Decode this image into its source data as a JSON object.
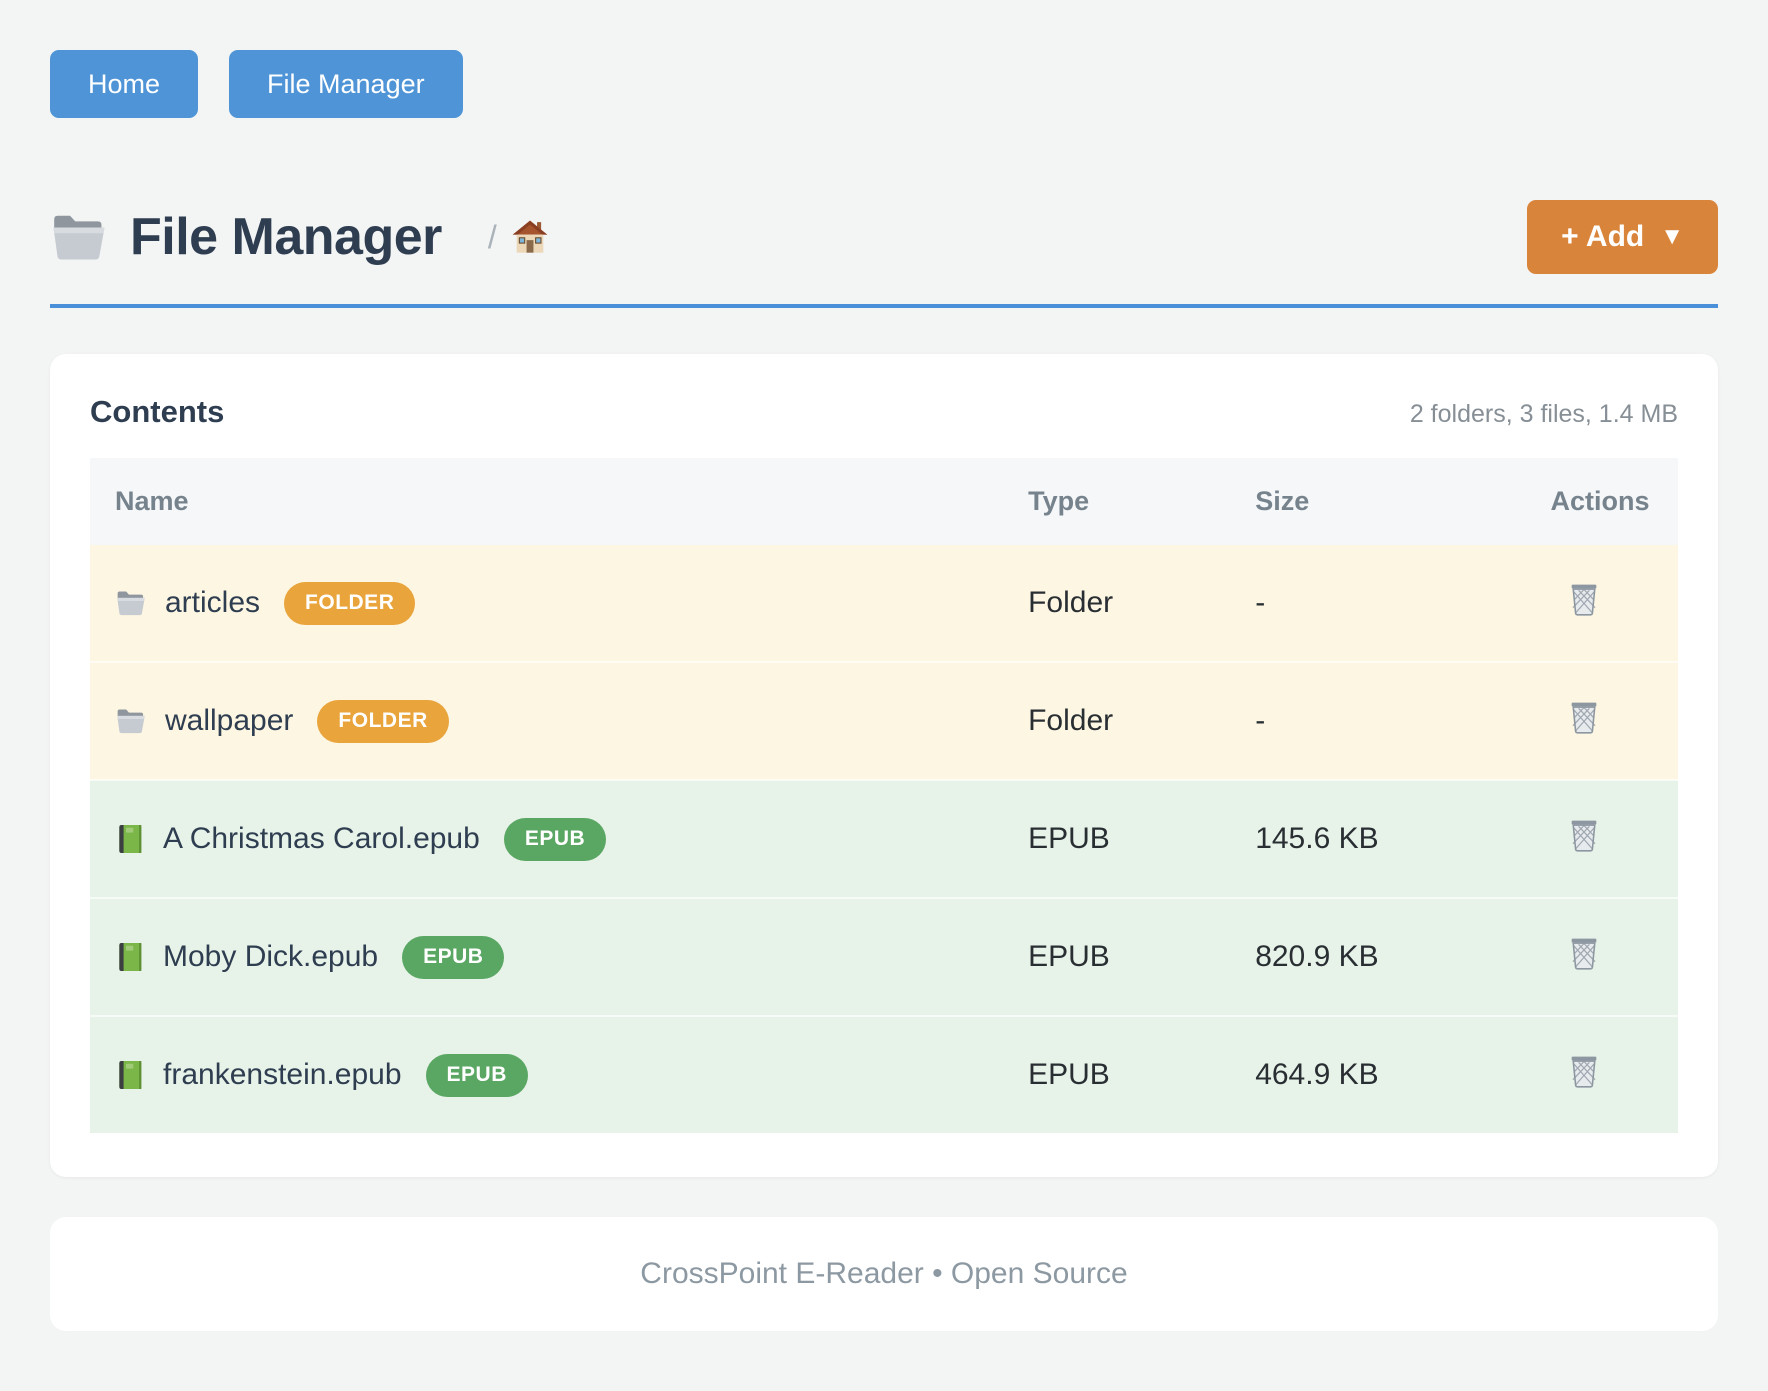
{
  "nav": {
    "buttons": [
      {
        "label": "Home"
      },
      {
        "label": "File Manager"
      }
    ],
    "button_color": "#4e94d6"
  },
  "header": {
    "title": "File Manager",
    "title_icon": "folder-icon",
    "breadcrumb_separator": "/",
    "breadcrumb_home_icon": "home-icon",
    "add_button": {
      "label": "+ Add",
      "caret": "▼",
      "color": "#d9843b"
    },
    "rule_color": "#4a90d9"
  },
  "contents": {
    "heading": "Contents",
    "summary": "2 folders, 3 files, 1.4 MB",
    "columns": [
      "Name",
      "Type",
      "Size",
      "Actions"
    ],
    "action_icon": "trash-icon",
    "row_colors": {
      "folder": "#fdf6e2",
      "file": "#e7f2e8"
    },
    "badge_colors": {
      "folder": "#e9a43b",
      "epub": "#5aa763"
    },
    "rows": [
      {
        "name": "articles",
        "icon": "folder-icon",
        "badge": "FOLDER",
        "badge_color": "#e9a43b",
        "type": "Folder",
        "size": "-",
        "kind": "folder"
      },
      {
        "name": "wallpaper",
        "icon": "folder-icon",
        "badge": "FOLDER",
        "badge_color": "#e9a43b",
        "type": "Folder",
        "size": "-",
        "kind": "folder"
      },
      {
        "name": "A Christmas Carol.epub",
        "icon": "book-icon",
        "badge": "EPUB",
        "badge_color": "#5aa763",
        "type": "EPUB",
        "size": "145.6 KB",
        "kind": "file"
      },
      {
        "name": "Moby Dick.epub",
        "icon": "book-icon",
        "badge": "EPUB",
        "badge_color": "#5aa763",
        "type": "EPUB",
        "size": "820.9 KB",
        "kind": "file"
      },
      {
        "name": "frankenstein.epub",
        "icon": "book-icon",
        "badge": "EPUB",
        "badge_color": "#5aa763",
        "type": "EPUB",
        "size": "464.9 KB",
        "kind": "file"
      }
    ]
  },
  "footer": {
    "text": "CrossPoint E-Reader • Open Source"
  }
}
